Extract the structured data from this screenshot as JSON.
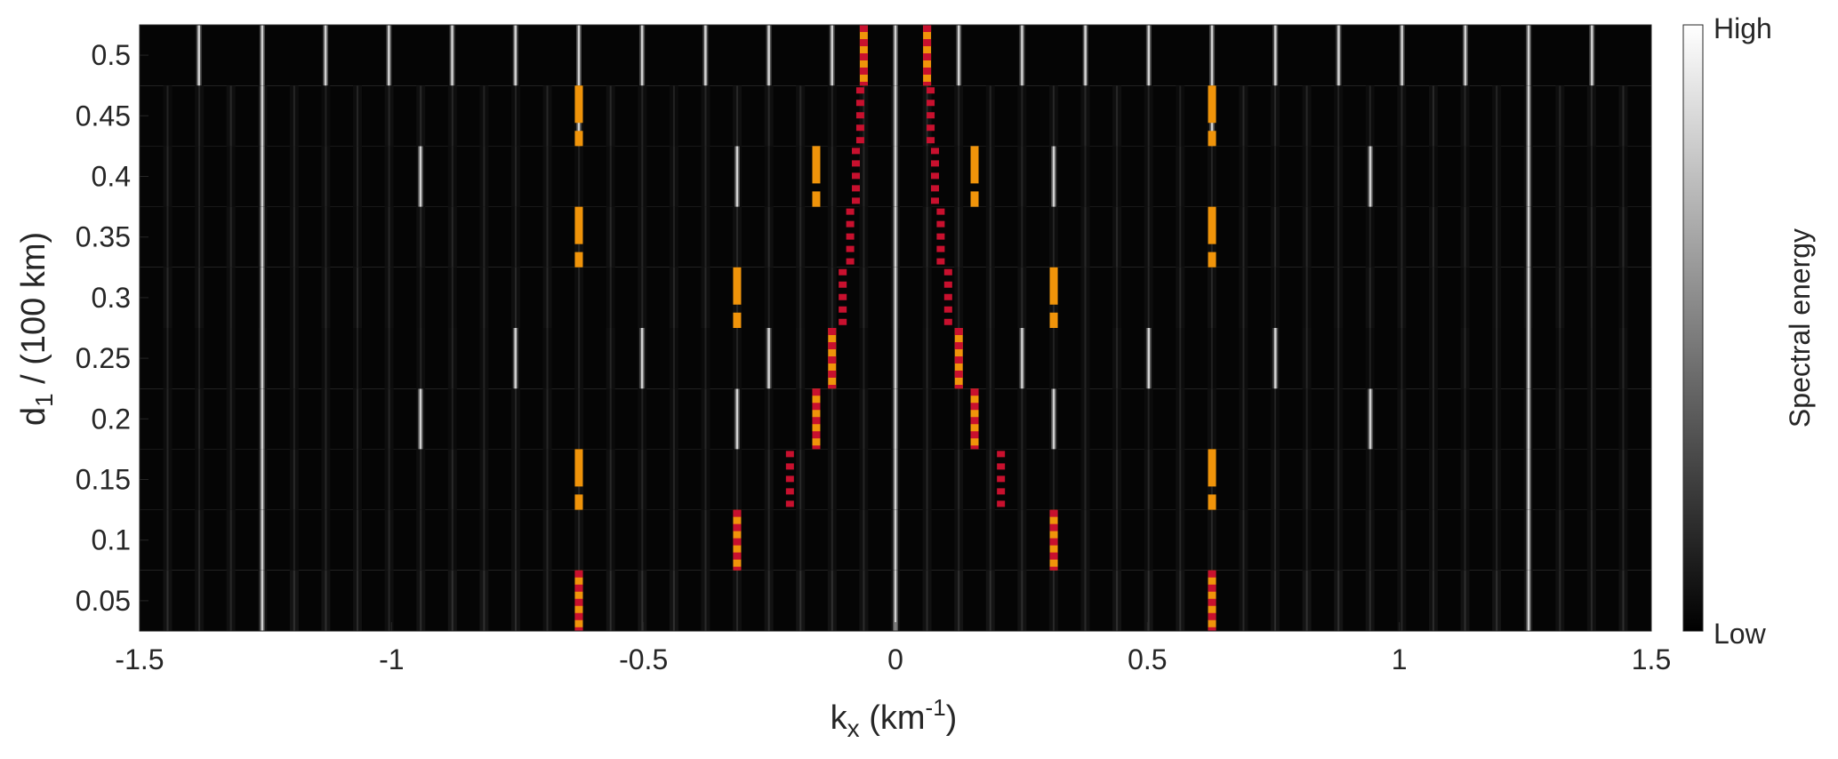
{
  "chart_data": {
    "type": "heatmap",
    "title": "",
    "xlabel": "k",
    "xlabel_sub": "x",
    "xlabel_unit_pre": " (km",
    "xlabel_unit_sup": "-1",
    "xlabel_unit_post": ")",
    "ylabel": "d",
    "ylabel_sub": "1",
    "ylabel_rest": " / (100 km)",
    "xlim": [
      -1.5,
      1.5
    ],
    "ylim": [
      0.025,
      0.525
    ],
    "x_ticks": [
      -1.5,
      -1,
      -0.5,
      0,
      0.5,
      1,
      1.5
    ],
    "x_tick_labels": [
      "-1.5",
      "-1",
      "-0.5",
      "0",
      "0.5",
      "1",
      "1.5"
    ],
    "y_ticks": [
      0.05,
      0.1,
      0.15,
      0.2,
      0.25,
      0.3,
      0.35,
      0.4,
      0.45,
      0.5
    ],
    "y_tick_labels": [
      "0.05",
      "0.1",
      "0.15",
      "0.2",
      "0.25",
      "0.3",
      "0.35",
      "0.4",
      "0.45",
      "0.5"
    ],
    "rows": [
      {
        "d1": 0.05,
        "bright_lines": [
          -1.2566,
          0,
          1.2566
        ],
        "line_spacing": 0.0628,
        "baseline": 0.13
      },
      {
        "d1": 0.1,
        "bright_lines": [
          -1.2566,
          0,
          1.2566
        ],
        "line_spacing": 0.0628,
        "baseline": 0.1
      },
      {
        "d1": 0.15,
        "bright_lines": [
          -1.2566,
          0,
          1.2566
        ],
        "line_spacing": 0.0628,
        "baseline": 0.1
      },
      {
        "d1": 0.2,
        "bright_lines": [
          -1.2566,
          -0.9425,
          -0.3142,
          0,
          0.3142,
          0.9425,
          1.2566
        ],
        "line_spacing": 0.0628,
        "baseline": 0.09
      },
      {
        "d1": 0.25,
        "bright_lines": [
          -1.2566,
          -0.754,
          -0.5027,
          -0.2513,
          0,
          0.2513,
          0.5027,
          0.754,
          1.2566
        ],
        "line_spacing": 0.0628,
        "baseline": 0.09
      },
      {
        "d1": 0.3,
        "bright_lines": [
          -1.2566,
          0,
          1.2566
        ],
        "line_spacing": 0.0628,
        "baseline": 0.1
      },
      {
        "d1": 0.35,
        "bright_lines": [
          -1.2566,
          0,
          1.2566
        ],
        "line_spacing": 0.0628,
        "baseline": 0.1
      },
      {
        "d1": 0.4,
        "bright_lines": [
          -1.2566,
          -0.9425,
          -0.3142,
          0,
          0.3142,
          0.9425,
          1.2566
        ],
        "line_spacing": 0.0628,
        "baseline": 0.09
      },
      {
        "d1": 0.45,
        "bright_lines": [
          -1.2566,
          -0.6283,
          0,
          0.6283,
          1.2566
        ],
        "line_spacing": 0.0628,
        "baseline": 0.1
      },
      {
        "d1": 0.5,
        "bright_lines": [
          -1.3823,
          -1.2566,
          -1.131,
          -1.0053,
          -0.8796,
          -0.754,
          -0.6283,
          -0.5027,
          -0.377,
          -0.2513,
          -0.1257,
          0,
          0.1257,
          0.2513,
          0.377,
          0.5027,
          0.6283,
          0.754,
          0.8796,
          1.0053,
          1.131,
          1.2566,
          1.3823
        ],
        "line_spacing": 0.1257,
        "baseline": 0.05
      }
    ],
    "overlay_series": [
      {
        "style": "orange-dashed",
        "color": "#f0940a",
        "segments": [
          {
            "k": -0.6283,
            "d1": 0.15
          },
          {
            "k": 0.6283,
            "d1": 0.15
          },
          {
            "k": -0.6283,
            "d1": 0.35
          },
          {
            "k": 0.6283,
            "d1": 0.35
          },
          {
            "k": -0.6283,
            "d1": 0.45
          },
          {
            "k": 0.6283,
            "d1": 0.45
          },
          {
            "k": -0.1571,
            "d1": 0.4
          },
          {
            "k": 0.1571,
            "d1": 0.4
          },
          {
            "k": -0.3142,
            "d1": 0.3
          },
          {
            "k": 0.3142,
            "d1": 0.3
          }
        ]
      },
      {
        "style": "orange-red-alternating",
        "colors": [
          "#f0940a",
          "#c8102e"
        ],
        "segments": [
          {
            "k": -0.6283,
            "d1": 0.05
          },
          {
            "k": 0.6283,
            "d1": 0.05
          },
          {
            "k": -0.3142,
            "d1": 0.1
          },
          {
            "k": 0.3142,
            "d1": 0.1
          },
          {
            "k": -0.1571,
            "d1": 0.2
          },
          {
            "k": 0.1571,
            "d1": 0.2
          },
          {
            "k": -0.1257,
            "d1": 0.25
          },
          {
            "k": 0.1257,
            "d1": 0.25
          },
          {
            "k": -0.0628,
            "d1": 0.5
          },
          {
            "k": 0.0628,
            "d1": 0.5
          }
        ]
      },
      {
        "style": "red-dotted",
        "color": "#c8102e",
        "segments": [
          {
            "k": -0.2094,
            "d1": 0.15
          },
          {
            "k": 0.2094,
            "d1": 0.15
          },
          {
            "k": -0.1047,
            "d1": 0.3
          },
          {
            "k": 0.1047,
            "d1": 0.3
          },
          {
            "k": -0.0898,
            "d1": 0.35
          },
          {
            "k": 0.0898,
            "d1": 0.35
          },
          {
            "k": -0.0785,
            "d1": 0.4
          },
          {
            "k": 0.0785,
            "d1": 0.4
          },
          {
            "k": -0.0698,
            "d1": 0.45
          },
          {
            "k": 0.0698,
            "d1": 0.45
          }
        ]
      }
    ],
    "colorbar": {
      "label": "Spectral energy",
      "high_label": "High",
      "low_label": "Low",
      "colormap": "gray"
    }
  }
}
